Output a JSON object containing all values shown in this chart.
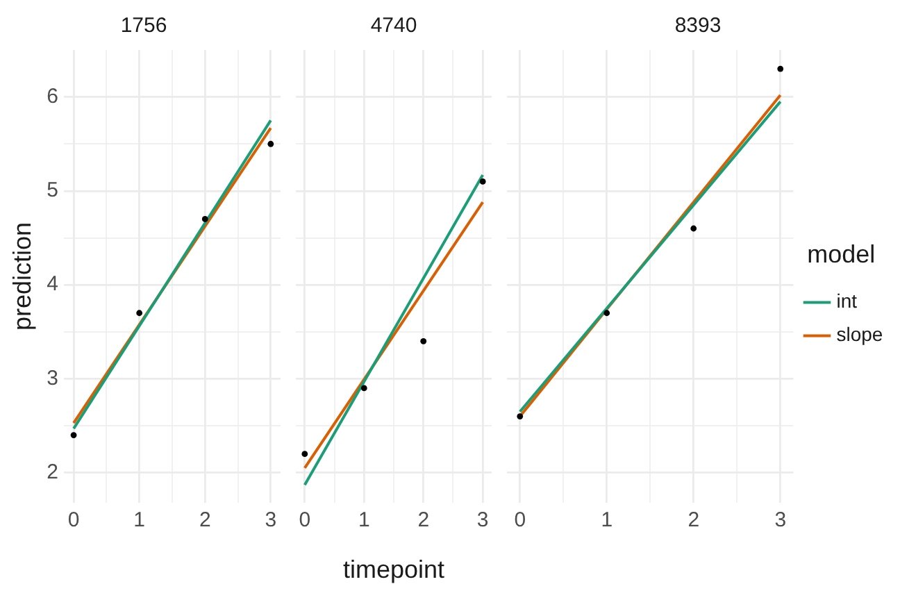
{
  "chart_data": [
    {
      "type": "line",
      "title": "1756",
      "ylabel": "prediction",
      "grid": true,
      "xlim": [
        -0.15,
        3.15
      ],
      "ylim": [
        1.68,
        6.5
      ],
      "xticks": [
        0,
        {
          "value": 0.5,
          "label": null
        },
        1,
        {
          "value": 1.5,
          "label": null
        },
        2,
        {
          "value": 2.5,
          "label": null
        },
        3
      ],
      "yticks": [
        2,
        {
          "value": 2.5,
          "label": null
        },
        3,
        {
          "value": 3.5,
          "label": null
        },
        4,
        {
          "value": 4.5,
          "label": null
        },
        5,
        {
          "value": 5.5,
          "label": null
        },
        6
      ],
      "series": [
        {
          "type": "scatter",
          "marker": "circle",
          "color": "#000000",
          "x": [
            0,
            1,
            2,
            3
          ],
          "values": [
            2.4,
            3.7,
            4.7,
            5.5
          ]
        },
        {
          "color": "#1b9e77",
          "x": [
            0,
            3
          ],
          "values": [
            2.47,
            5.75
          ]
        },
        {
          "color": "#d95f02",
          "x": [
            0,
            3
          ],
          "values": [
            2.53,
            5.67
          ]
        }
      ]
    },
    {
      "type": "line",
      "title": "4740",
      "xlabel": "timepoint",
      "grid": true,
      "tick_labels": "x",
      "xlim": [
        -0.15,
        3.15
      ],
      "ylim": [
        1.68,
        6.5
      ],
      "xticks": [
        0,
        {
          "value": 0.5,
          "label": null
        },
        1,
        {
          "value": 1.5,
          "label": null
        },
        2,
        {
          "value": 2.5,
          "label": null
        },
        3
      ],
      "yticks": [
        2,
        {
          "value": 2.5,
          "label": null
        },
        3,
        {
          "value": 3.5,
          "label": null
        },
        4,
        {
          "value": 4.5,
          "label": null
        },
        5,
        {
          "value": 5.5,
          "label": null
        },
        6
      ],
      "series": [
        {
          "type": "scatter",
          "marker": "circle",
          "color": "#000000",
          "x": [
            0,
            1,
            2,
            3
          ],
          "values": [
            2.2,
            2.9,
            3.4,
            5.1
          ]
        },
        {
          "color": "#1b9e77",
          "x": [
            0,
            3
          ],
          "values": [
            1.87,
            5.17
          ]
        },
        {
          "color": "#d95f02",
          "x": [
            0,
            3
          ],
          "values": [
            2.05,
            4.88
          ]
        }
      ]
    },
    {
      "type": "line",
      "title": "8393",
      "grid": true,
      "tick_labels": "x",
      "legend": "right",
      "legend_title": "model",
      "xlim": [
        -0.15,
        3.15
      ],
      "ylim": [
        1.68,
        6.5
      ],
      "xticks": [
        0,
        {
          "value": 0.5,
          "label": null
        },
        1,
        {
          "value": 1.5,
          "label": null
        },
        2,
        {
          "value": 2.5,
          "label": null
        },
        3
      ],
      "yticks": [
        2,
        {
          "value": 2.5,
          "label": null
        },
        3,
        {
          "value": 3.5,
          "label": null
        },
        4,
        {
          "value": 4.5,
          "label": null
        },
        5,
        {
          "value": 5.5,
          "label": null
        },
        6
      ],
      "series": [
        {
          "type": "scatter",
          "marker": "circle",
          "color": "#000000",
          "x": [
            0,
            1,
            2,
            3
          ],
          "values": [
            2.6,
            3.7,
            4.6,
            6.3
          ]
        },
        {
          "name": "int",
          "color": "#1b9e77",
          "x": [
            0,
            3
          ],
          "values": [
            2.65,
            5.95
          ]
        },
        {
          "name": "slope",
          "color": "#d95f02",
          "x": [
            0,
            3
          ],
          "values": [
            2.6,
            6.02
          ]
        }
      ]
    }
  ]
}
